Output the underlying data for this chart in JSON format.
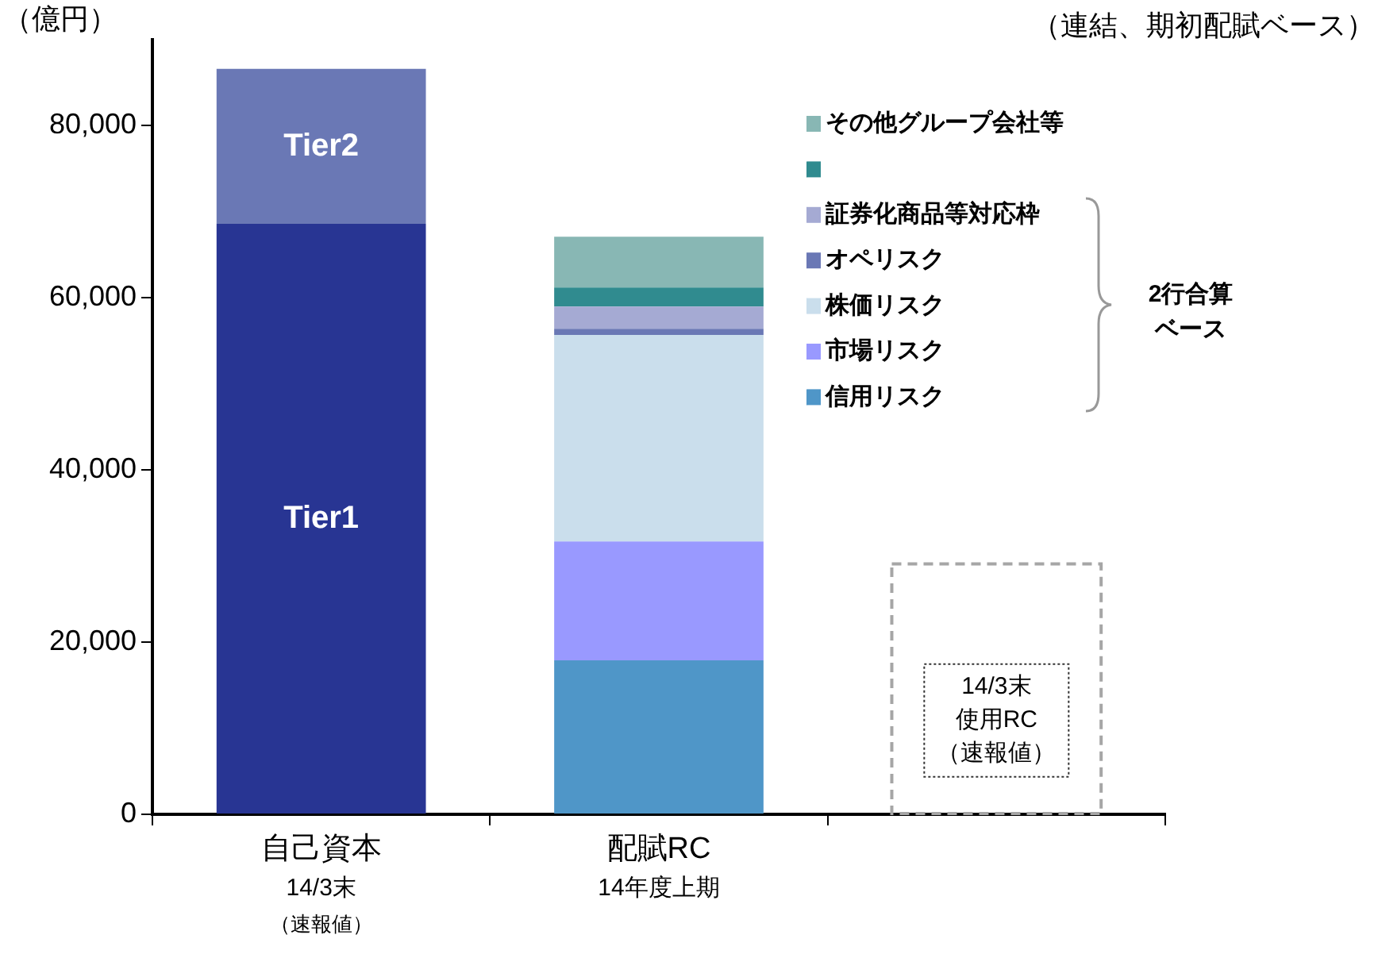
{
  "chart_data": {
    "type": "bar",
    "stacked": true,
    "subtitle": "（連結、期初配賦ベース）",
    "ylabel": "（億円）",
    "categories": [
      "自己資本",
      "配賦RC",
      null
    ],
    "series": [
      {
        "name": "Tier1",
        "color": "#283593",
        "values": [
          68600,
          null,
          null
        ]
      },
      {
        "name": "Tier2",
        "color": "#6a78b5",
        "values": [
          18000,
          null,
          null
        ]
      },
      {
        "name": "信用リスク",
        "color": "#4f96c8",
        "values": [
          null,
          17900,
          null
        ]
      },
      {
        "name": "市場リスク",
        "color": "#9999ff",
        "values": [
          null,
          13800,
          null
        ]
      },
      {
        "name": "株価リスク",
        "color": "#cadeec",
        "values": [
          null,
          24000,
          null
        ]
      },
      {
        "name": "オペリスク",
        "color": "#6a78b5",
        "values": [
          null,
          700,
          null
        ]
      },
      {
        "name": "証券化商品等対応枠",
        "color": "#a5aad3",
        "values": [
          null,
          2600,
          null
        ]
      },
      {
        "color": "#308b8f",
        "values": [
          null,
          2200,
          null
        ]
      },
      {
        "name": "その他グループ会社等",
        "color": "#88b7b4",
        "values": [
          null,
          5900,
          null
        ]
      },
      {
        "color": "#a6a6a6",
        "line_style": "dashed",
        "values": [
          null,
          null,
          29100
        ]
      }
    ],
    "ylim": [
      0,
      90000
    ],
    "yticks": [
      0,
      {
        "value": 20000,
        "label": "20,000"
      },
      {
        "value": 40000,
        "label": "40,000"
      },
      {
        "value": 60000,
        "label": "60,000"
      },
      {
        "value": 80000,
        "label": "80,000"
      }
    ],
    "legend": "top right",
    "annotations": [
      "14/3末",
      "（速報値）",
      "14年度上期",
      "2行合算",
      "ベース",
      "14/3末",
      "使用RC",
      "（速報値）"
    ]
  }
}
